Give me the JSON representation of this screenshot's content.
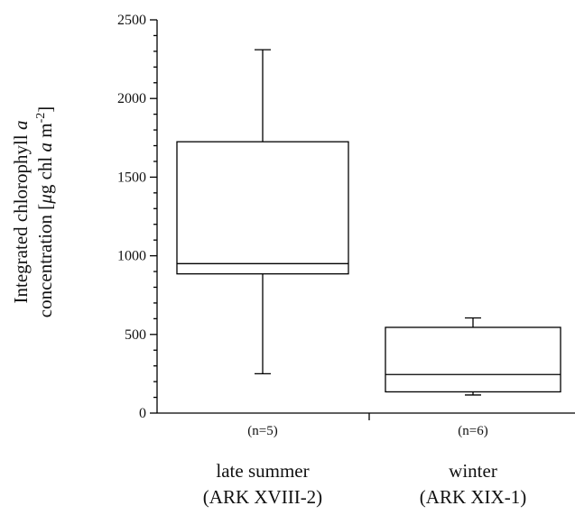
{
  "chart_data": {
    "type": "box",
    "ylabel_line1_prefix": "Integrated chlorophyll ",
    "ylabel_line1_italic": "a",
    "ylabel_line2_prefix": "concentration [",
    "ylabel_line2_mu": "μ",
    "ylabel_line2_mid": "g chl ",
    "ylabel_line2_italic": "a",
    "ylabel_line2_unit": " m",
    "ylabel_line2_sup": "-2",
    "ylabel_line2_suffix": "]",
    "ylim": [
      0,
      2500
    ],
    "yticks": [
      "0",
      "500",
      "1000",
      "1500",
      "2000",
      "2500"
    ],
    "ytick_values": [
      0,
      500,
      1000,
      1500,
      2000,
      2500
    ],
    "yminor_step": 100,
    "categories": [
      {
        "n_label": "(n=5)",
        "name_line1": "late summer",
        "name_line2": "(ARK XVIII-2)",
        "whisker_low": 250,
        "q1": 885,
        "median": 950,
        "q3": 1725,
        "whisker_high": 2310
      },
      {
        "n_label": "(n=6)",
        "name_line1": "winter",
        "name_line2": "(ARK XIX-1)",
        "whisker_low": 115,
        "q1": 135,
        "median": 245,
        "q3": 545,
        "whisker_high": 605
      }
    ]
  }
}
